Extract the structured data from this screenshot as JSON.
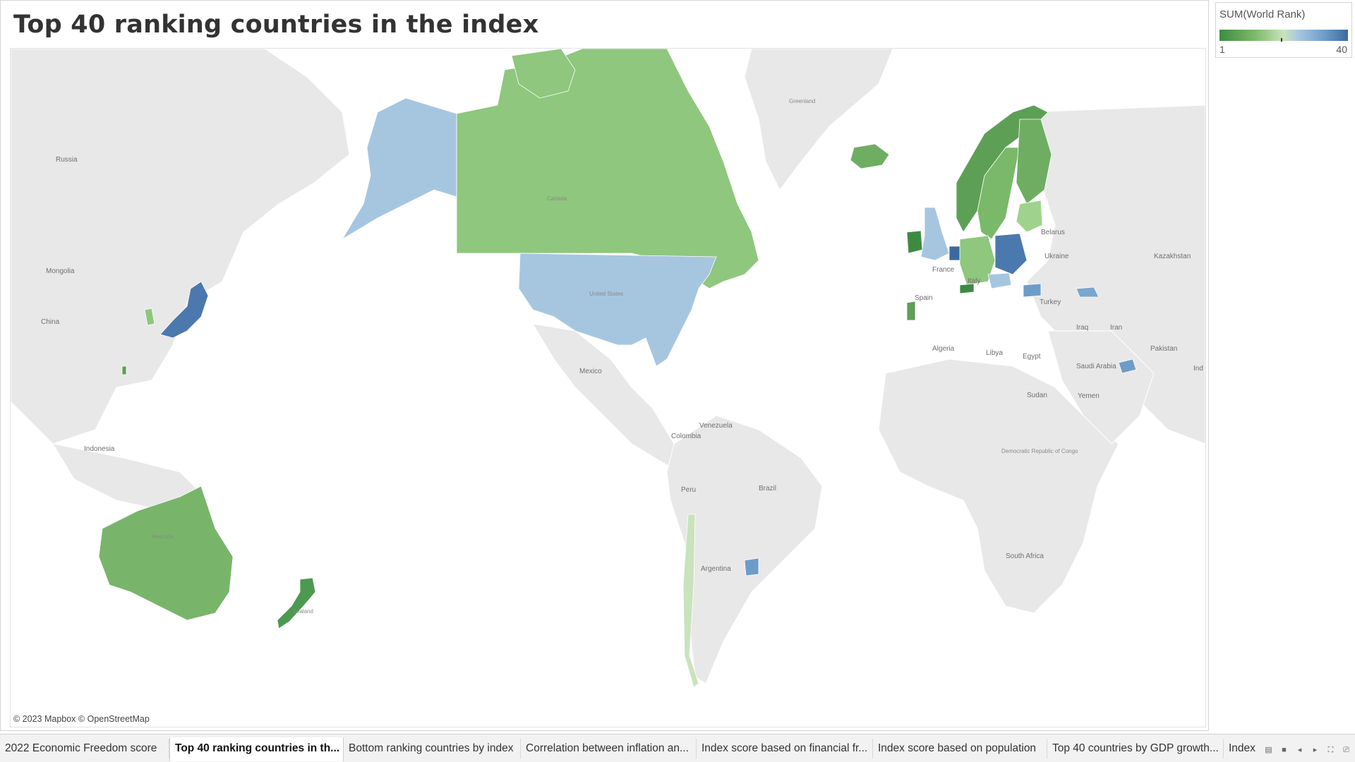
{
  "sheet": {
    "title": "Top 40 ranking countries in the index"
  },
  "legend": {
    "title": "SUM(World Rank)",
    "min_label": "1",
    "max_label": "40",
    "colors": {
      "low": "#3d8b43",
      "mid": "#c9e3bc",
      "high": "#3b6aa0"
    }
  },
  "map": {
    "attribution": "© 2023 Mapbox © OpenStreetMap",
    "place_labels": [
      "Russia",
      "Greenland",
      "Mongolia",
      "China",
      "Indonesia",
      "Canada",
      "United States",
      "Mexico",
      "Venezuela",
      "Colombia",
      "Peru",
      "Brazil",
      "Argentina",
      "Belarus",
      "Ukraine",
      "Kazakhstan",
      "France",
      "Italy",
      "Spain",
      "Turkey",
      "Iraq",
      "Iran",
      "Pakistan",
      "Ind",
      "Algeria",
      "Libya",
      "Egypt",
      "Saudi Arabia",
      "Yemen",
      "Sudan",
      "Democratic Republic of Congo",
      "South Africa",
      "Australia",
      "Zealand"
    ]
  },
  "tabs": [
    {
      "label": "2022 Economic Freedom score",
      "active": false
    },
    {
      "label": "Top 40 ranking countries in th...",
      "active": true
    },
    {
      "label": "Bottom ranking countries by index",
      "active": false
    },
    {
      "label": "Correlation between inflation an...",
      "active": false
    },
    {
      "label": "Index score based on financial fr...",
      "active": false
    },
    {
      "label": "Index score based on population",
      "active": false
    },
    {
      "label": "Top 40 countries by GDP growth...",
      "active": false
    },
    {
      "label": "Index",
      "active": false
    }
  ],
  "tab_controls": [
    "sheet-sorter-icon",
    "filmstrip-icon",
    "previous-sheet-icon",
    "next-sheet-icon",
    "fullscreen-icon",
    "present-icon"
  ]
}
